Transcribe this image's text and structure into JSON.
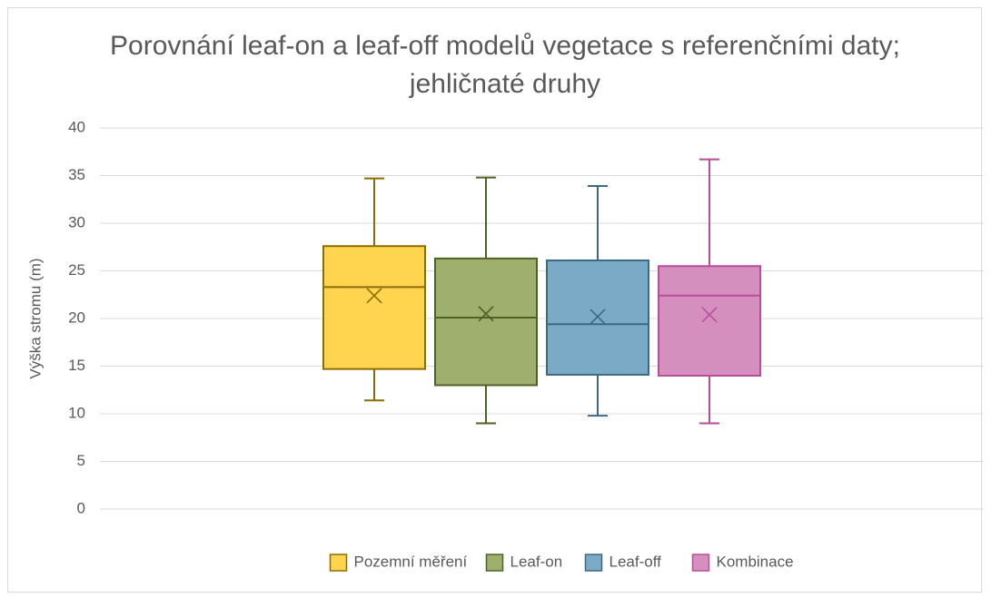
{
  "chart_data": {
    "type": "box",
    "title": "Porovnání leaf-on a leaf-off modelů vegetace s referenčními daty; jehličnaté druhy",
    "y_label": "Výška stromu (m)",
    "ylim": [
      0,
      40
    ],
    "yticks": [
      0,
      5,
      10,
      15,
      20,
      25,
      30,
      35,
      40
    ],
    "grid": true,
    "legend": "bottom",
    "series": [
      {
        "name": "Pozemní měření",
        "color": "#FFD54F",
        "edge": "#8B6D00",
        "min": 11.4,
        "q1": 14.7,
        "median": 23.3,
        "q3": 27.6,
        "max": 34.7,
        "mean": 22.4
      },
      {
        "name": "Leaf-on",
        "color": "#9FAF6E",
        "edge": "#4E6228",
        "min": 9.0,
        "q1": 13.0,
        "median": 20.1,
        "q3": 26.3,
        "max": 34.8,
        "mean": 20.5
      },
      {
        "name": "Leaf-off",
        "color": "#7BAAC7",
        "edge": "#3D6A83",
        "min": 9.8,
        "q1": 14.1,
        "median": 19.4,
        "q3": 26.1,
        "max": 33.9,
        "mean": 20.2
      },
      {
        "name": "Kombinace",
        "color": "#D48FBF",
        "edge": "#B94D9A",
        "min": 9.0,
        "q1": 14.0,
        "median": 22.4,
        "q3": 25.5,
        "max": 36.7,
        "mean": 20.4
      }
    ]
  }
}
